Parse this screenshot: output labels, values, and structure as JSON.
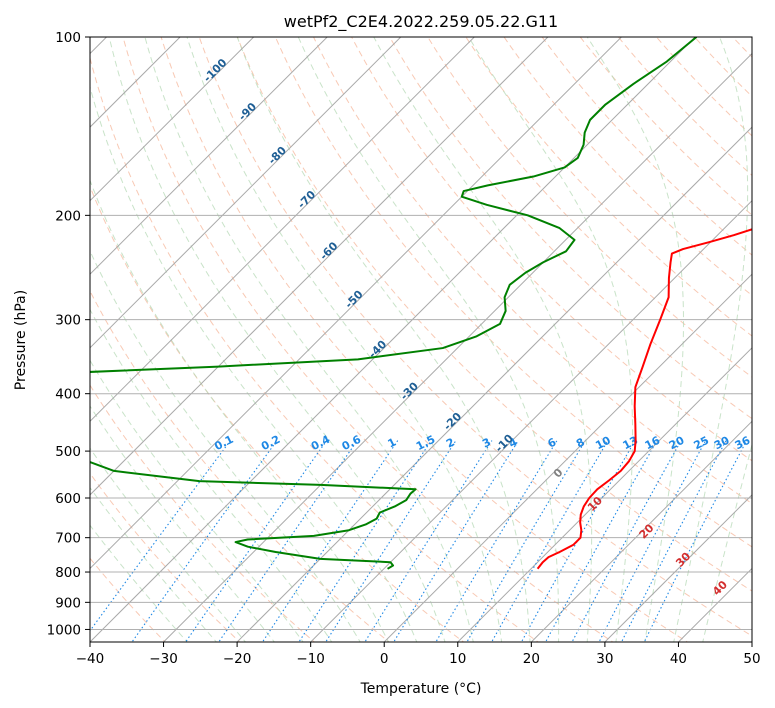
{
  "chart_data": {
    "type": "line",
    "diagram": "Skew-T log-P",
    "title": "wetPf2_C2E4.2022.259.05.22.G11",
    "xlabel": "Temperature (°C)",
    "ylabel": "Pressure (hPa)",
    "xlim": [
      -40,
      50
    ],
    "ylim": [
      1050,
      100
    ],
    "yscale": "log",
    "grid": true,
    "x_ticks": [
      "−40",
      "−30",
      "−20",
      "−10",
      "0",
      "10",
      "20",
      "30",
      "40",
      "50"
    ],
    "y_ticks": [
      {
        "p": 100,
        "label": "100"
      },
      {
        "p": 200,
        "label": "200"
      },
      {
        "p": 300,
        "label": "300"
      },
      {
        "p": 400,
        "label": "400"
      },
      {
        "p": 500,
        "label": "500"
      },
      {
        "p": 600,
        "label": "600"
      },
      {
        "p": 700,
        "label": "700"
      },
      {
        "p": 800,
        "label": "800"
      },
      {
        "p": 900,
        "label": "900"
      },
      {
        "p": 1000,
        "label": "1000"
      }
    ],
    "colors": {
      "temperature": "#ff0000",
      "dewpoint": "#008000",
      "isotherm": "#a9a9a9",
      "dry_adiabat": "#f4a582",
      "moist_adiabat": "#b7d9b7",
      "mixing_ratio": "#1e88e5",
      "grid": "#b0b0b0"
    },
    "series": [
      {
        "key": "temperature",
        "points": [
          [
            790,
            10.9
          ],
          [
            770,
            10.7
          ],
          [
            755,
            10.8
          ],
          [
            740,
            11.6
          ],
          [
            720,
            12.5
          ],
          [
            700,
            12.5
          ],
          [
            680,
            11.6
          ],
          [
            660,
            10.4
          ],
          [
            640,
            9.4
          ],
          [
            620,
            8.7
          ],
          [
            600,
            8.3
          ],
          [
            580,
            8.2
          ],
          [
            560,
            8.6
          ],
          [
            540,
            8.9
          ],
          [
            520,
            8.7
          ],
          [
            500,
            8.1
          ],
          [
            480,
            6.8
          ],
          [
            450,
            4.5
          ],
          [
            420,
            2.0
          ],
          [
            390,
            -0.5
          ],
          [
            360,
            -2.3
          ],
          [
            330,
            -4.3
          ],
          [
            300,
            -6.3
          ],
          [
            275,
            -8.2
          ],
          [
            255,
            -10.8
          ],
          [
            240,
            -12.7
          ],
          [
            232,
            -13.7
          ],
          [
            228,
            -12.8
          ],
          [
            222,
            -10.2
          ],
          [
            216,
            -7.8
          ],
          [
            208,
            -5.0
          ],
          [
            200,
            -3.5
          ],
          [
            190,
            -2.6
          ],
          [
            180,
            -2.7
          ],
          [
            170,
            -3.0
          ],
          [
            160,
            -3.9
          ],
          [
            150,
            -5.0
          ],
          [
            140,
            -7.0
          ],
          [
            130,
            -9.8
          ],
          [
            120,
            -12.9
          ],
          [
            110,
            -16.2
          ],
          [
            100,
            -20.2
          ]
        ]
      },
      {
        "key": "dewpoint",
        "points": [
          [
            790,
            -9.5
          ],
          [
            780,
            -9.2
          ],
          [
            770,
            -10.0
          ],
          [
            760,
            -20.0
          ],
          [
            740,
            -27.0
          ],
          [
            725,
            -31.5
          ],
          [
            712,
            -33.8
          ],
          [
            705,
            -32.5
          ],
          [
            695,
            -24.0
          ],
          [
            680,
            -20.0
          ],
          [
            665,
            -18.5
          ],
          [
            650,
            -17.8
          ],
          [
            635,
            -18.2
          ],
          [
            620,
            -17.0
          ],
          [
            605,
            -16.3
          ],
          [
            590,
            -16.6
          ],
          [
            580,
            -16.5
          ],
          [
            570,
            -30.0
          ],
          [
            562,
            -47.0
          ],
          [
            540,
            -60.0
          ],
          [
            500,
            -70.0
          ],
          [
            420,
            -79.0
          ],
          [
            380,
            -86.0
          ],
          [
            370,
            -82.0
          ],
          [
            360,
            -60.0
          ],
          [
            350,
            -42.0
          ],
          [
            335,
            -32.0
          ],
          [
            320,
            -29.0
          ],
          [
            305,
            -27.5
          ],
          [
            290,
            -28.5
          ],
          [
            275,
            -30.5
          ],
          [
            262,
            -31.5
          ],
          [
            250,
            -31.0
          ],
          [
            240,
            -30.0
          ],
          [
            230,
            -28.4
          ],
          [
            220,
            -28.8
          ],
          [
            210,
            -32.5
          ],
          [
            200,
            -38.5
          ],
          [
            192,
            -45.5
          ],
          [
            186,
            -50.0
          ],
          [
            182,
            -50.5
          ],
          [
            178,
            -48.0
          ],
          [
            172,
            -43.0
          ],
          [
            166,
            -40.0
          ],
          [
            160,
            -39.5
          ],
          [
            152,
            -40.5
          ],
          [
            145,
            -42.0
          ],
          [
            138,
            -43.0
          ],
          [
            130,
            -43.0
          ],
          [
            120,
            -42.0
          ],
          [
            110,
            -40.5
          ],
          [
            100,
            -39.8
          ]
        ]
      }
    ],
    "mixing_ratio_labels": [
      "0.1",
      "0.2",
      "0.4",
      "0.6",
      "1",
      "1.5",
      "2",
      "3",
      "4",
      "6",
      "8",
      "10",
      "13",
      "16",
      "20",
      "25",
      "30",
      "36"
    ],
    "dry_adiabat_labels": [
      "-100",
      "-90",
      "-80",
      "-70",
      "-60",
      "-50",
      "-40",
      "-30",
      "-20",
      "-10"
    ],
    "moist_adiabat_labels": [
      "0",
      "10",
      "20",
      "30",
      "40"
    ]
  }
}
